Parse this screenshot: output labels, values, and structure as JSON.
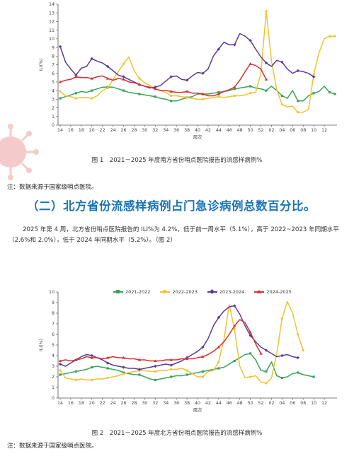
{
  "figure1": {
    "caption": "图 1　2021－2025 年度南方省份哨点医院报告的流感样病例%",
    "note": "注：数据来源于国家级哨点医院。"
  },
  "section": {
    "heading": "（二）北方省份流感样病例占门急诊病例总数百分比。",
    "paragraph": "2025 年第 4 周，北方省份哨点医院报告的 ILI%为 4.2%，低于前一周水平（5.1%），高于 2022~2023 年同期水平（2.6%和 2.0%），低于 2024 年同期水平（5.2%）。（图 2）"
  },
  "figure2": {
    "caption": "图 2　2021－2025 年度北方省份哨点医院报告的流感样病例%",
    "note": "注：数据来源于国家级哨点医院。"
  },
  "legend": [
    {
      "label": "2021-2022",
      "color": "#3aa35a",
      "marker": "square"
    },
    {
      "label": "2022-2023",
      "color": "#f2c12e",
      "marker": "circle"
    },
    {
      "label": "2023-2024",
      "color": "#5b3a9a",
      "marker": "diamond"
    },
    {
      "label": "2024-2025",
      "color": "#d9302c",
      "marker": "triangle"
    }
  ],
  "chart_data": [
    {
      "type": "line",
      "title": "",
      "xlabel": "周次",
      "ylabel": "ILI(%)",
      "ylim": [
        0,
        14
      ],
      "yticks": [
        0,
        1,
        2,
        3,
        4,
        5,
        6,
        7,
        8,
        9,
        10,
        11,
        12,
        13,
        14
      ],
      "x_tick_labels": [
        "14",
        "16",
        "18",
        "20",
        "22",
        "24",
        "26",
        "28",
        "30",
        "32",
        "34",
        "36",
        "38",
        "40",
        "42",
        "44",
        "46",
        "48",
        "50",
        "52",
        "02",
        "04",
        "06",
        "08",
        "10",
        "12"
      ],
      "x_tick_index": [
        0,
        2,
        4,
        6,
        8,
        10,
        12,
        14,
        16,
        18,
        20,
        22,
        24,
        26,
        28,
        30,
        32,
        34,
        36,
        38,
        40,
        42,
        44,
        46,
        48,
        50
      ],
      "grid": false,
      "series": [
        {
          "name": "2021-2022",
          "color": "#3aa35a",
          "marker": "square",
          "values": [
            3.1,
            3.3,
            3.5,
            3.7,
            3.9,
            3.8,
            4.0,
            4.2,
            4.4,
            4.4,
            4.4,
            4.2,
            4.0,
            3.8,
            3.7,
            3.6,
            3.5,
            3.4,
            3.3,
            3.1,
            3.0,
            2.8,
            2.8,
            3.0,
            3.2,
            3.3,
            3.6,
            3.6,
            3.6,
            3.7,
            3.8,
            3.9,
            4.0,
            4.2,
            4.3,
            4.4,
            4.5,
            4.3,
            4.2,
            4.0,
            4.5,
            4.0,
            3.4,
            3.1,
            4.0,
            2.8,
            2.8,
            3.4,
            3.7,
            3.9,
            4.5,
            3.8,
            3.6
          ]
        },
        {
          "name": "2022-2023",
          "color": "#f2c12e",
          "marker": "circle",
          "values": [
            3.9,
            3.4,
            3.3,
            3.1,
            3.2,
            3.2,
            3.1,
            3.4,
            4.0,
            4.3,
            5.3,
            6.2,
            7.1,
            7.9,
            6.3,
            5.4,
            4.9,
            4.6,
            4.2,
            4.0,
            3.8,
            3.4,
            3.4,
            3.3,
            3.2,
            3.1,
            3.0,
            3.0,
            3.1,
            3.2,
            3.3,
            3.2,
            3.3,
            3.4,
            3.4,
            3.5,
            3.7,
            3.8,
            6.0,
            13.2,
            7.4,
            4.1,
            2.4,
            2.1,
            2.2,
            1.5,
            1.5,
            1.8,
            5.9,
            8.4,
            10.0,
            10.3,
            10.3
          ]
        },
        {
          "name": "2023-2024",
          "color": "#5b3a9a",
          "marker": "diamond",
          "values": [
            9.1,
            7.3,
            6.5,
            5.8,
            6.6,
            6.8,
            7.7,
            7.4,
            7.2,
            6.8,
            6.3,
            5.8,
            5.6,
            5.3,
            5.0,
            4.7,
            4.5,
            4.3,
            4.4,
            4.6,
            5.1,
            5.6,
            5.7,
            5.3,
            5.2,
            5.7,
            6.1,
            6.0,
            6.5,
            8.0,
            8.8,
            9.6,
            9.3,
            9.3,
            10.6,
            10.3,
            9.8,
            8.8,
            7.9,
            7.2,
            6.8,
            7.5,
            7.3,
            6.5,
            6.0,
            6.3,
            6.2,
            6.0,
            5.6
          ]
        },
        {
          "name": "2024-2025",
          "color": "#d9302c",
          "marker": "triangle",
          "values": [
            5.0,
            5.2,
            5.3,
            5.6,
            5.5,
            5.5,
            5.4,
            5.6,
            5.7,
            5.4,
            5.2,
            5.4,
            5.3,
            5.0,
            4.9,
            4.7,
            4.5,
            4.4,
            4.2,
            4.0,
            4.0,
            3.9,
            3.8,
            3.8,
            3.9,
            3.7,
            3.7,
            3.6,
            3.4,
            3.4,
            3.6,
            3.9,
            4.1,
            4.4,
            5.2,
            6.2,
            7.1,
            6.9,
            6.5,
            5.3
          ]
        }
      ]
    },
    {
      "type": "line",
      "title": "",
      "xlabel": "周次",
      "ylabel": "ILI(%)",
      "ylim": [
        0,
        10
      ],
      "yticks": [
        0,
        1,
        2,
        3,
        4,
        5,
        6,
        7,
        8,
        9,
        10
      ],
      "x_tick_labels": [
        "14",
        "16",
        "18",
        "20",
        "22",
        "24",
        "26",
        "28",
        "30",
        "32",
        "34",
        "36",
        "38",
        "40",
        "42",
        "44",
        "46",
        "48",
        "50",
        "52",
        "02",
        "04",
        "06",
        "08",
        "10",
        "12"
      ],
      "x_tick_index": [
        0,
        2,
        4,
        6,
        8,
        10,
        12,
        14,
        16,
        18,
        20,
        22,
        24,
        26,
        28,
        30,
        32,
        34,
        36,
        38,
        40,
        42,
        44,
        46,
        48,
        50
      ],
      "grid": false,
      "series": [
        {
          "name": "2021-2022",
          "color": "#3aa35a",
          "marker": "square",
          "values": [
            2.2,
            2.3,
            2.4,
            2.5,
            2.6,
            2.7,
            2.9,
            3.0,
            2.9,
            2.8,
            2.7,
            2.6,
            2.4,
            2.3,
            2.2,
            2.2,
            2.0,
            1.8,
            1.7,
            1.8,
            1.9,
            2.0,
            2.1,
            2.1,
            2.2,
            2.3,
            2.4,
            2.5,
            2.6,
            2.7,
            2.8,
            2.9,
            3.2,
            3.5,
            3.8,
            4.1,
            4.2,
            3.6,
            2.6,
            2.5,
            3.4,
            2.1,
            1.9,
            2.0,
            2.3,
            2.4,
            2.2,
            2.1,
            2.0
          ]
        },
        {
          "name": "2022-2023",
          "color": "#f2c12e",
          "marker": "circle",
          "values": [
            2.6,
            1.9,
            1.8,
            1.7,
            1.8,
            1.7,
            1.7,
            1.8,
            1.8,
            1.9,
            2.0,
            2.1,
            2.3,
            2.4,
            2.5,
            2.6,
            2.6,
            2.5,
            2.5,
            2.6,
            2.6,
            2.7,
            2.7,
            2.8,
            2.6,
            2.3,
            2.0,
            2.0,
            2.5,
            2.6,
            3.4,
            5.5,
            8.8,
            6.5,
            3.0,
            1.9,
            2.0,
            2.1,
            1.5,
            1.4,
            1.9,
            4.2,
            7.5,
            9.1,
            8.0,
            6.0,
            4.5
          ]
        },
        {
          "name": "2023-2024",
          "color": "#5b3a9a",
          "marker": "diamond",
          "values": [
            3.2,
            3.0,
            3.3,
            3.6,
            3.9,
            4.1,
            4.0,
            3.8,
            3.6,
            3.3,
            3.1,
            3.0,
            2.9,
            2.8,
            2.8,
            2.7,
            2.8,
            2.9,
            3.0,
            3.1,
            3.2,
            3.1,
            3.3,
            3.5,
            3.8,
            4.1,
            4.4,
            4.8,
            5.6,
            6.8,
            7.6,
            8.2,
            8.6,
            8.7,
            7.9,
            6.8,
            5.9,
            5.3,
            4.8,
            4.5,
            4.2,
            3.9,
            4.0,
            4.1,
            3.9,
            3.8
          ]
        },
        {
          "name": "2024-2025",
          "color": "#d9302c",
          "marker": "triangle",
          "values": [
            3.5,
            3.6,
            3.5,
            3.6,
            3.7,
            3.9,
            3.8,
            3.8,
            3.7,
            3.8,
            3.9,
            3.8,
            3.8,
            3.7,
            3.7,
            3.6,
            3.6,
            3.5,
            3.5,
            3.5,
            3.6,
            3.6,
            3.6,
            3.7,
            3.7,
            3.7,
            3.8,
            3.9,
            4.1,
            4.4,
            4.8,
            5.3,
            6.0,
            6.8,
            7.4,
            7.1,
            6.2,
            5.1,
            4.2
          ]
        }
      ]
    }
  ]
}
